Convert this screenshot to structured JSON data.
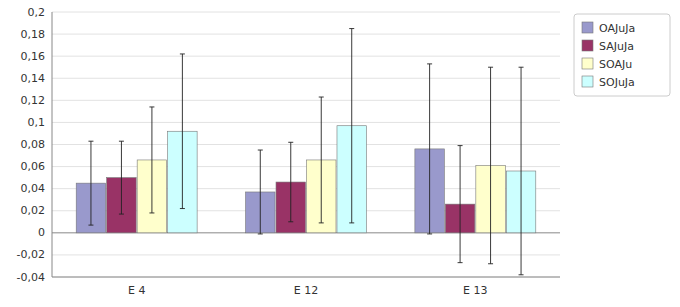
{
  "chart_data": {
    "type": "bar",
    "categories": [
      "E 4",
      "E 12",
      "E 13"
    ],
    "series": [
      {
        "name": "OAJuJa",
        "color": "#9999CC",
        "values": [
          0.045,
          0.037,
          0.076
        ],
        "errors": [
          0.038,
          0.038,
          0.077
        ]
      },
      {
        "name": "SAJuJa",
        "color": "#993366",
        "values": [
          0.05,
          0.046,
          0.026
        ],
        "errors": [
          0.033,
          0.036,
          0.053
        ]
      },
      {
        "name": "SOAJu",
        "color": "#FFFFCC",
        "values": [
          0.066,
          0.066,
          0.061
        ],
        "errors": [
          0.048,
          0.057,
          0.089
        ]
      },
      {
        "name": "SOJuJa",
        "color": "#CCFFFF",
        "values": [
          0.092,
          0.097,
          0.056
        ],
        "errors": [
          0.07,
          0.088,
          0.094
        ]
      }
    ],
    "ylim": [
      -0.04,
      0.2
    ],
    "yticks": [
      {
        "value": -0.04,
        "label": "-0,04"
      },
      {
        "value": -0.02,
        "label": "-0,02"
      },
      0,
      {
        "value": 0.02,
        "label": "0,02"
      },
      {
        "value": 0.04,
        "label": "0,04"
      },
      {
        "value": 0.06,
        "label": "0,06"
      },
      {
        "value": 0.08,
        "label": "0,08"
      },
      {
        "value": 0.1,
        "label": "0,1"
      },
      {
        "value": 0.12,
        "label": "0,12"
      },
      {
        "value": 0.14,
        "label": "0,14"
      },
      {
        "value": 0.16,
        "label": "0,16"
      },
      {
        "value": 0.18,
        "label": "0,18"
      },
      {
        "value": 0.2,
        "label": "0,2"
      }
    ],
    "grid": true,
    "legend": "right"
  }
}
